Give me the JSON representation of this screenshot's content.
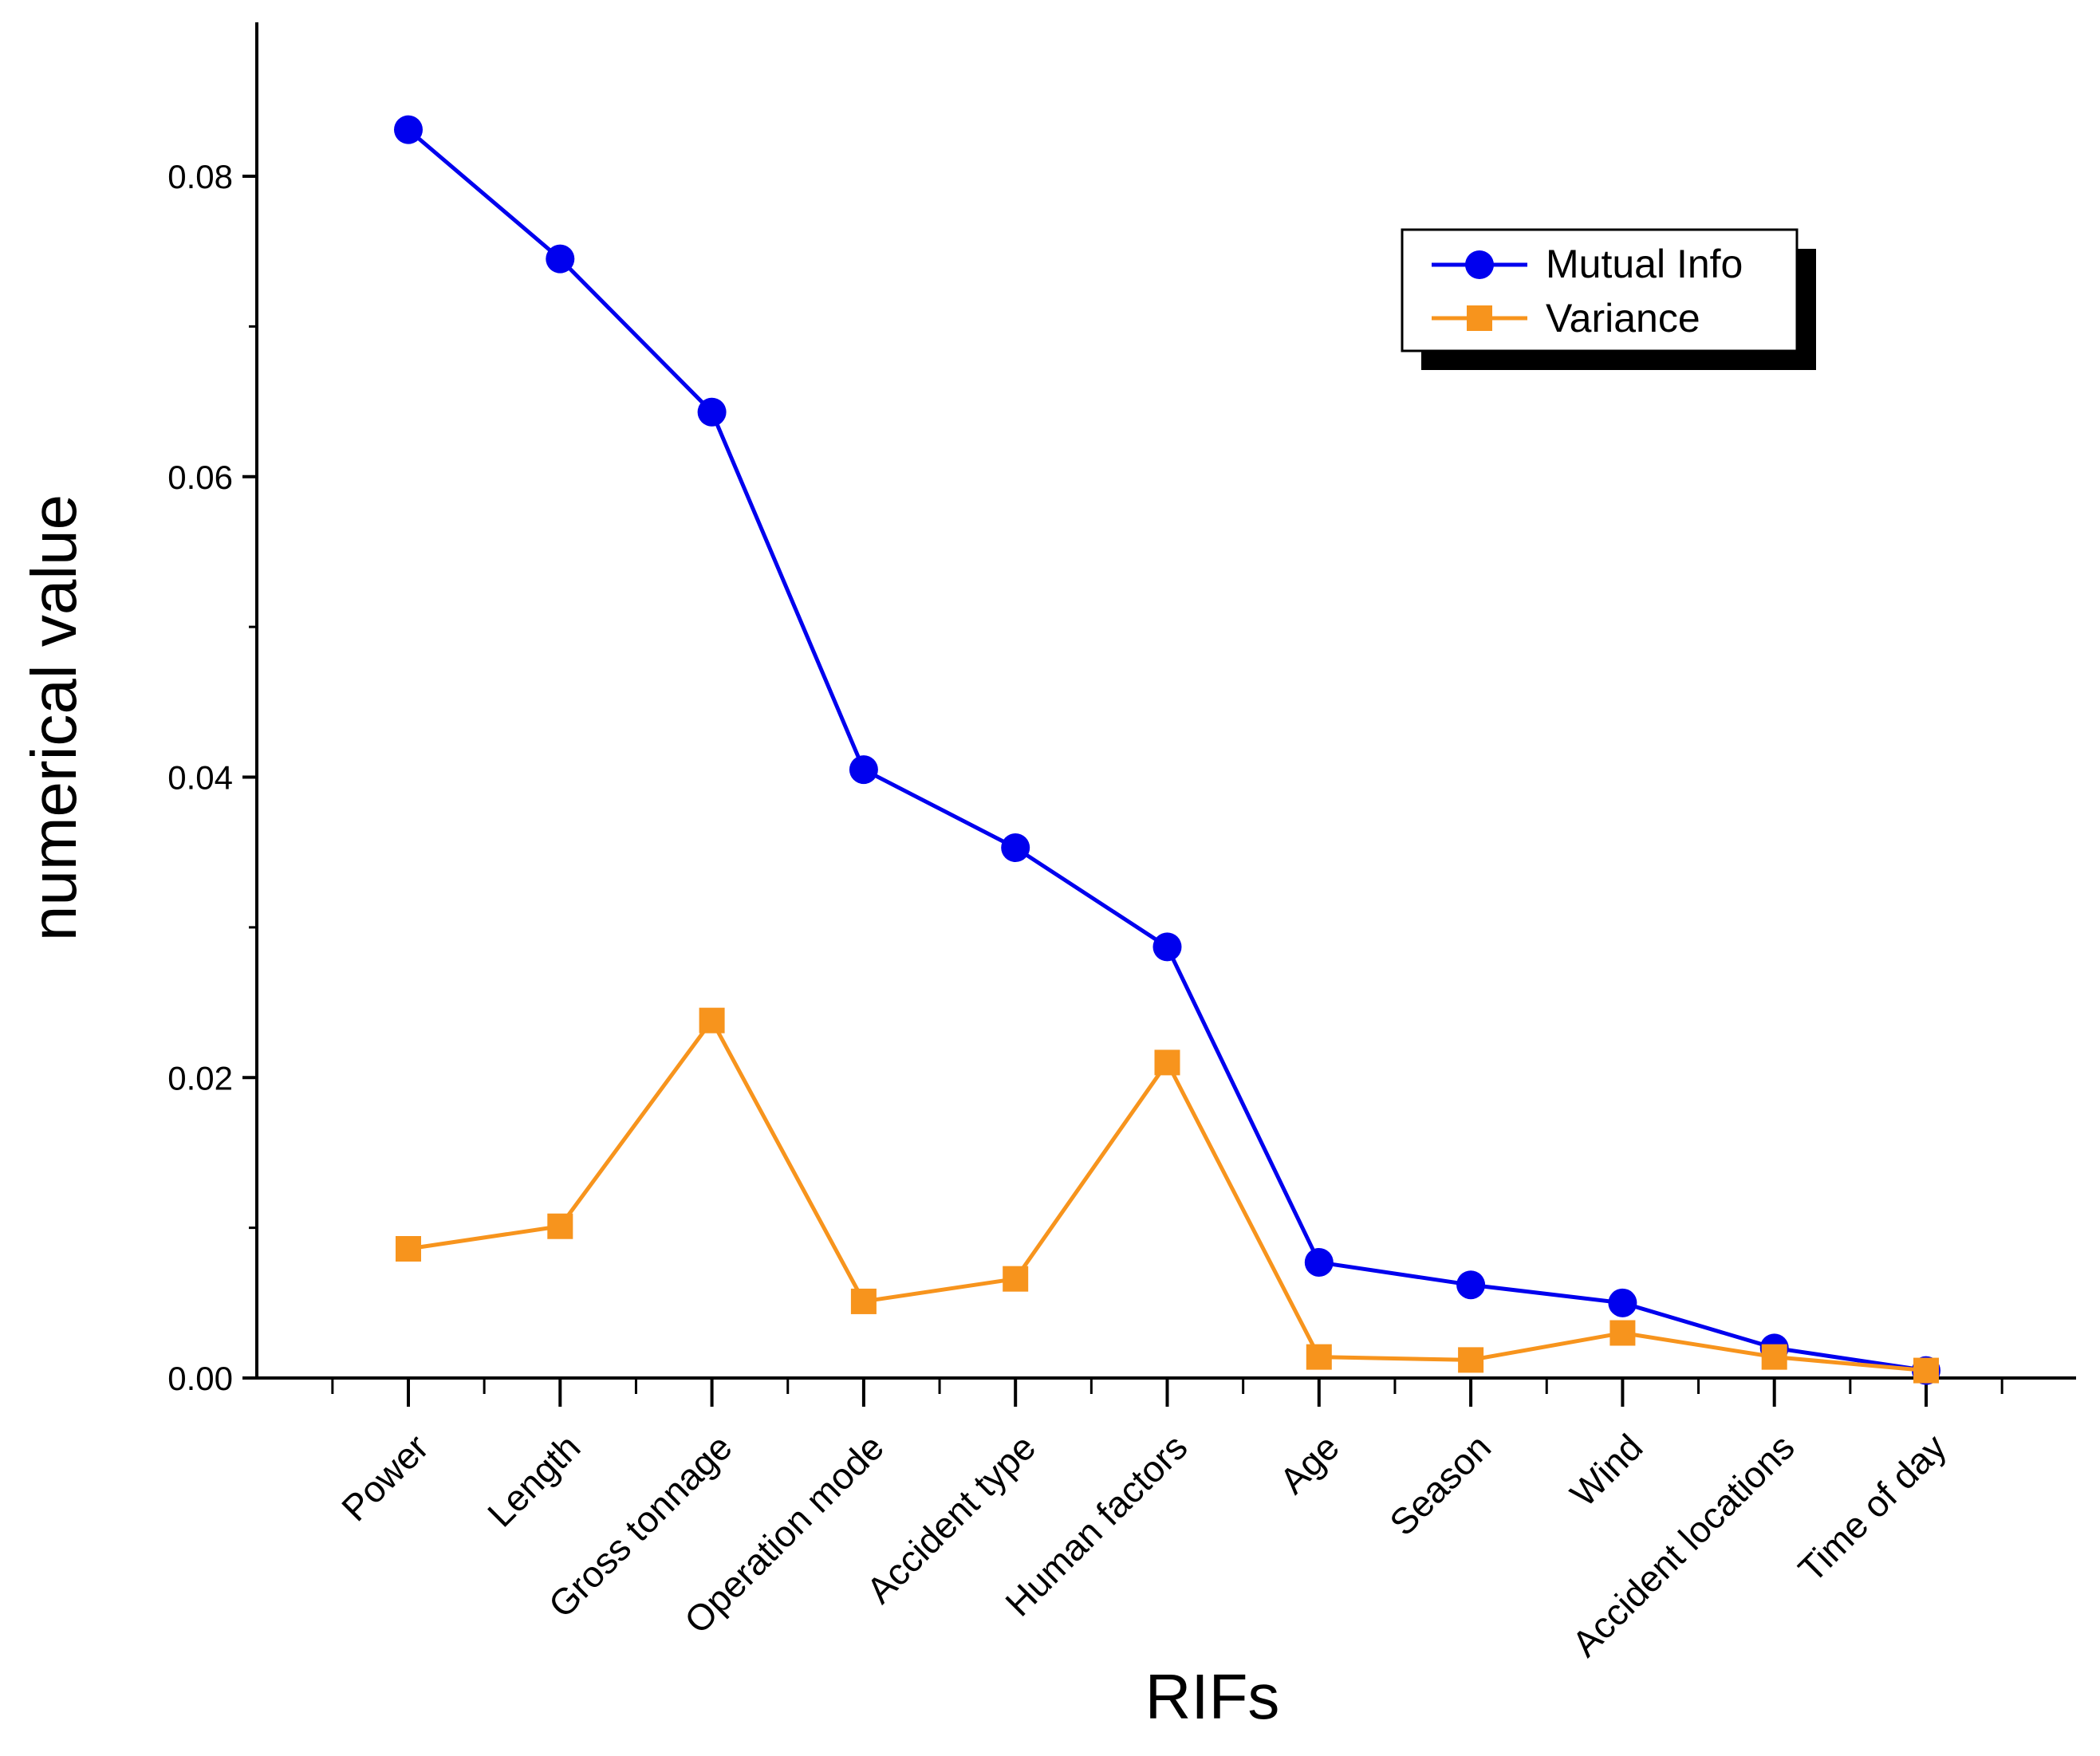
{
  "chart_data": {
    "type": "line",
    "title": "",
    "xlabel": "RIFs",
    "ylabel": "numerical value",
    "categories": [
      "Power",
      "Length",
      "Gross tonnage",
      "Operation mode",
      "Accident type",
      "Human factors",
      "Age",
      "Season",
      "Wind",
      "Accident locations",
      "Time of day"
    ],
    "ylim": [
      0,
      0.09
    ],
    "yticks": [
      0.0,
      0.02,
      0.04,
      0.06,
      0.08
    ],
    "ytick_labels": [
      "0.00",
      "0.02",
      "0.04",
      "0.06",
      "0.08"
    ],
    "grid": false,
    "legend_position": "top-right",
    "series": [
      {
        "name": "Mutual Info",
        "color": "#0000ee",
        "marker": "circle",
        "values": [
          0.0831,
          0.0745,
          0.0643,
          0.0405,
          0.0353,
          0.0287,
          0.0077,
          0.0062,
          0.005,
          0.002,
          0.0005
        ]
      },
      {
        "name": "Variance",
        "color": "#f7941d",
        "marker": "square",
        "values": [
          0.0086,
          0.0101,
          0.0238,
          0.0051,
          0.0066,
          0.021,
          0.0014,
          0.0012,
          0.003,
          0.0014,
          0.0005
        ]
      }
    ]
  }
}
